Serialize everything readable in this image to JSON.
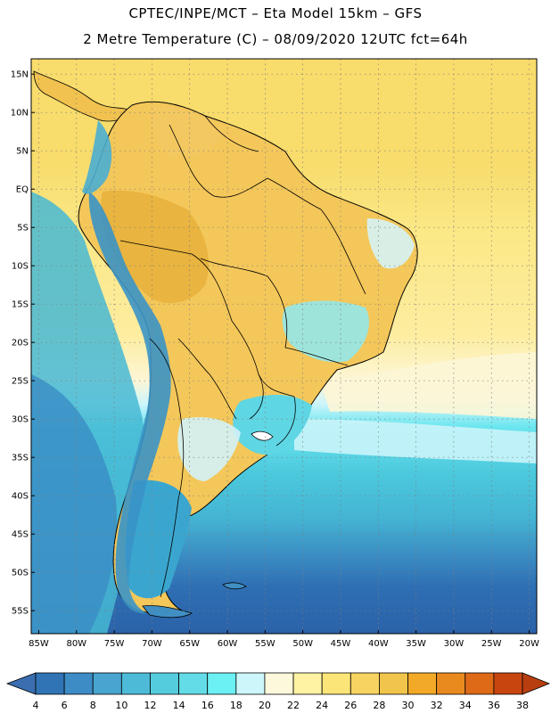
{
  "header": {
    "line1": "CPTEC/INPE/MCT –  Eta Model 15km – GFS",
    "line2": "2 Metre Temperature (C) – 08/09/2020 12UTC fct=64h"
  },
  "map": {
    "lon_range": [
      -86,
      -19
    ],
    "lat_range": [
      -58,
      17
    ],
    "lat_ticks": [
      {
        "value": 15,
        "label": "15N"
      },
      {
        "value": 10,
        "label": "10N"
      },
      {
        "value": 5,
        "label": "5N"
      },
      {
        "value": 0,
        "label": "EQ"
      },
      {
        "value": -5,
        "label": "5S"
      },
      {
        "value": -10,
        "label": "10S"
      },
      {
        "value": -15,
        "label": "15S"
      },
      {
        "value": -20,
        "label": "20S"
      },
      {
        "value": -25,
        "label": "25S"
      },
      {
        "value": -30,
        "label": "30S"
      },
      {
        "value": -35,
        "label": "35S"
      },
      {
        "value": -40,
        "label": "40S"
      },
      {
        "value": -45,
        "label": "45S"
      },
      {
        "value": -50,
        "label": "50S"
      },
      {
        "value": -55,
        "label": "55S"
      }
    ],
    "lon_ticks": [
      {
        "value": -85,
        "label": "85W"
      },
      {
        "value": -80,
        "label": "80W"
      },
      {
        "value": -75,
        "label": "75W"
      },
      {
        "value": -70,
        "label": "70W"
      },
      {
        "value": -65,
        "label": "65W"
      },
      {
        "value": -60,
        "label": "60W"
      },
      {
        "value": -55,
        "label": "55W"
      },
      {
        "value": -50,
        "label": "50W"
      },
      {
        "value": -45,
        "label": "45W"
      },
      {
        "value": -40,
        "label": "40W"
      },
      {
        "value": -35,
        "label": "35W"
      },
      {
        "value": -30,
        "label": "30W"
      },
      {
        "value": -25,
        "label": "25W"
      },
      {
        "value": -20,
        "label": "20W"
      }
    ],
    "grid": "dotted",
    "colors": {
      "ocean_north": "#f8dc6c",
      "ocean_tropic": "#fbe886",
      "ocean_south_warm": "#cdf5fb",
      "ocean_mid": "#5fd9e6",
      "ocean_cool": "#43bfd6",
      "ocean_cold": "#2e6eb3",
      "land_warm": "#f4c75a",
      "land_hot": "#eab441",
      "andes_cold": "#3da1cc",
      "border": "#000000"
    }
  },
  "colorbar": {
    "labels": [
      "4",
      "6",
      "8",
      "10",
      "12",
      "14",
      "16",
      "18",
      "20",
      "22",
      "24",
      "26",
      "28",
      "30",
      "32",
      "34",
      "36",
      "38"
    ],
    "colors": [
      "#3074b5",
      "#3d8cc6",
      "#48a5cf",
      "#4dbbd8",
      "#55ccde",
      "#64dce7",
      "#6bf0f4",
      "#cdf6fb",
      "#fdf8dc",
      "#fdf3a3",
      "#fbe579",
      "#f7d461",
      "#f1c44b",
      "#f2a927",
      "#e98a1f",
      "#de6a18",
      "#c84510"
    ],
    "low_color": "#3a6eb0",
    "high_color": "#b83e10"
  }
}
